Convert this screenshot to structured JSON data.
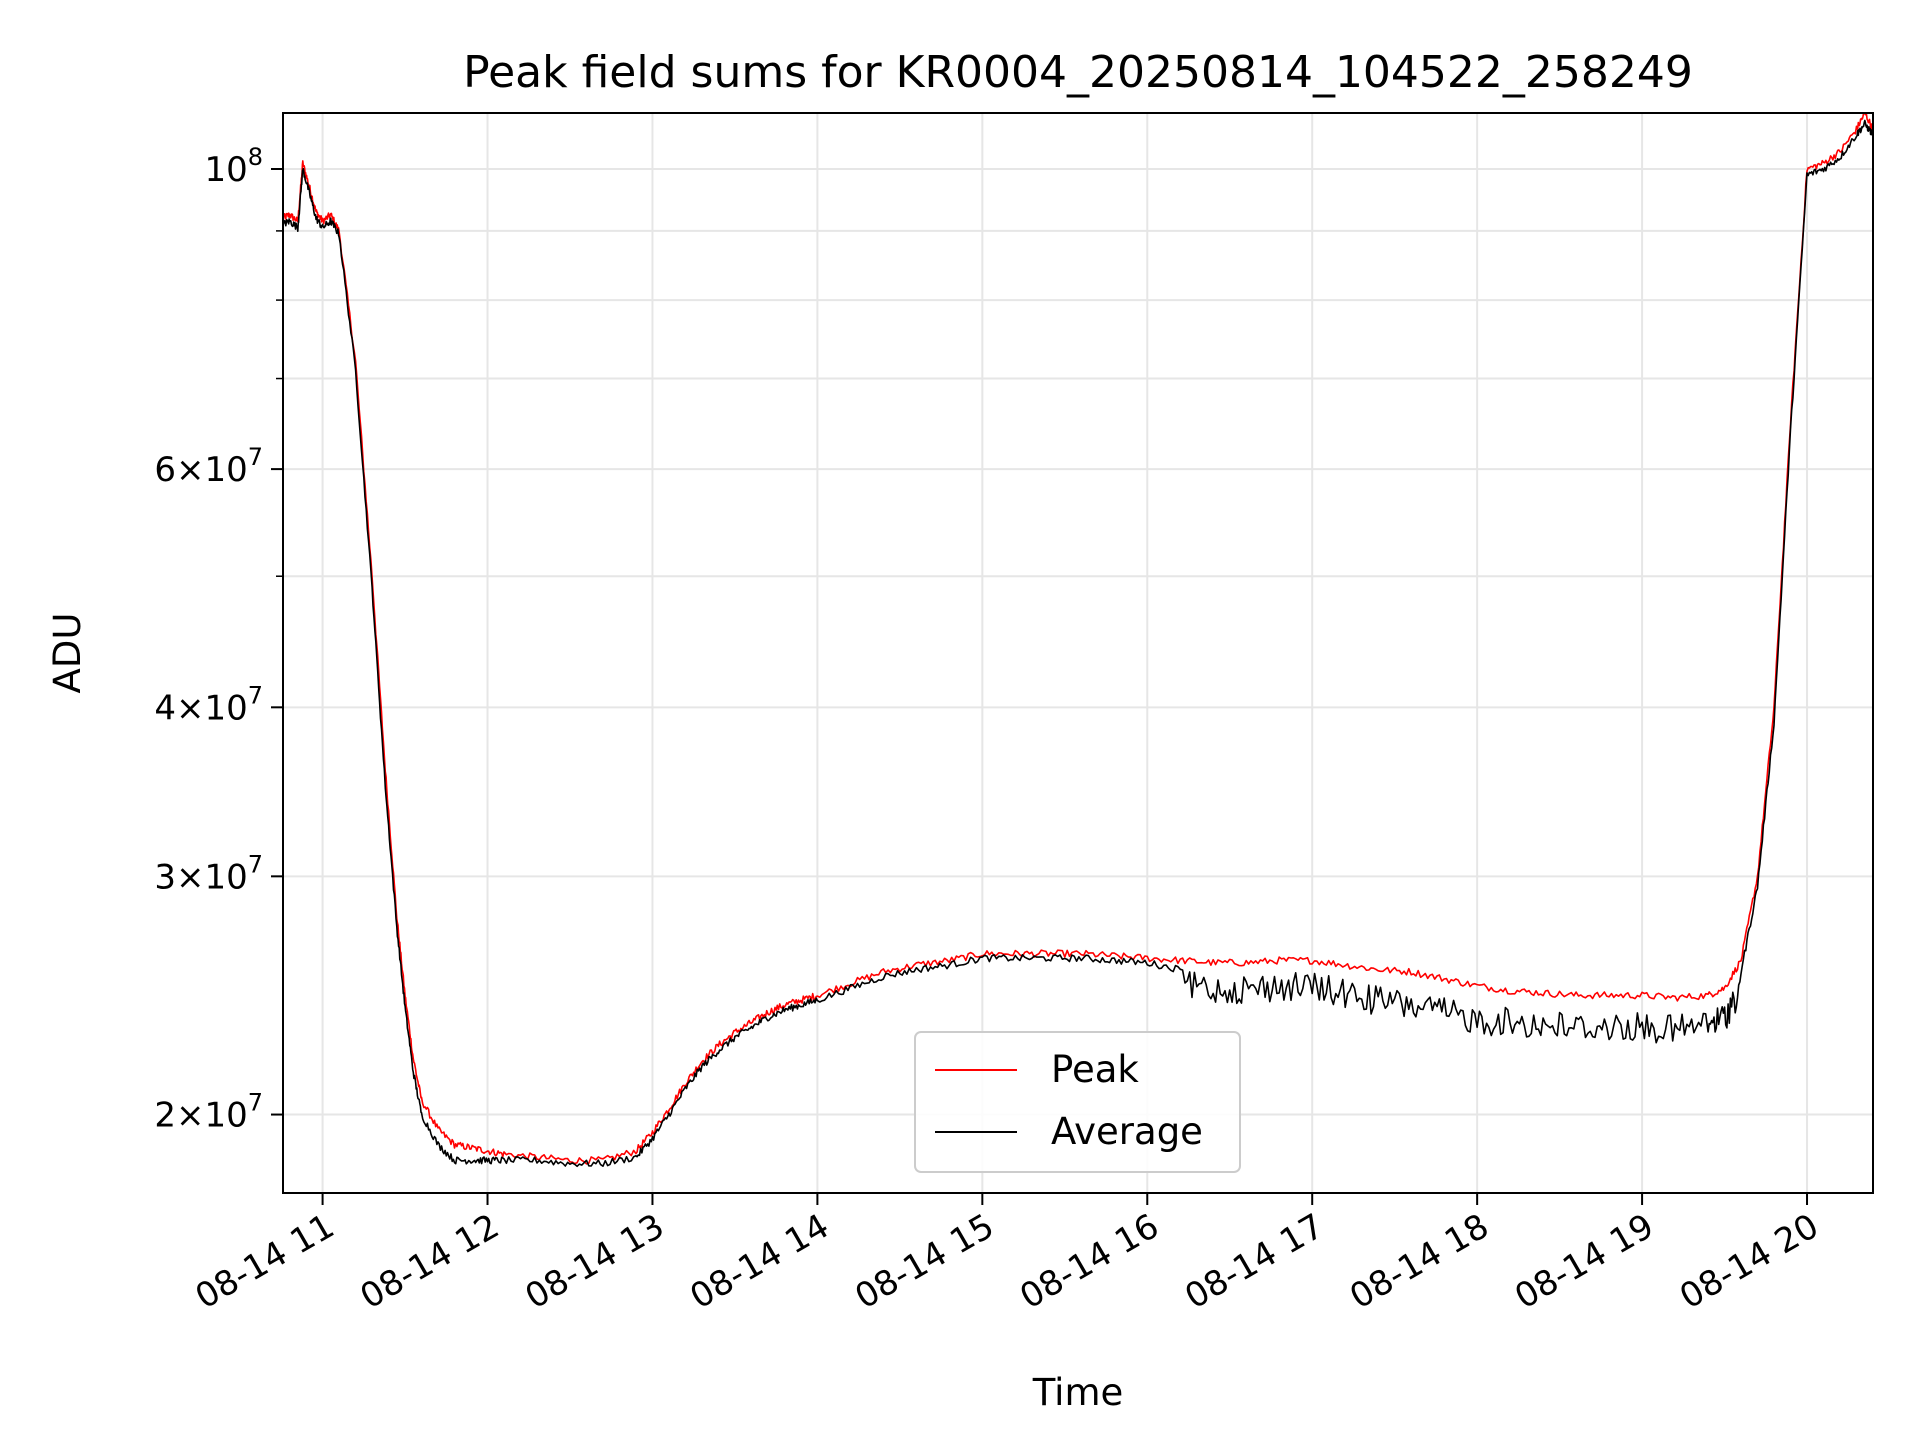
{
  "chart_data": {
    "type": "line",
    "title": "Peak field sums for KR0004_20250814_104522_258249",
    "xlabel": "Time",
    "ylabel": "ADU",
    "x_axis": {
      "scale": "time",
      "range_hours": [
        10.76,
        20.4
      ],
      "ticks": [
        {
          "value": 11,
          "label": "08-14 11"
        },
        {
          "value": 12,
          "label": "08-14 12"
        },
        {
          "value": 13,
          "label": "08-14 13"
        },
        {
          "value": 14,
          "label": "08-14 14"
        },
        {
          "value": 15,
          "label": "08-14 15"
        },
        {
          "value": 16,
          "label": "08-14 16"
        },
        {
          "value": 17,
          "label": "08-14 17"
        },
        {
          "value": 18,
          "label": "08-14 18"
        },
        {
          "value": 19,
          "label": "08-14 19"
        },
        {
          "value": 20,
          "label": "08-14 20"
        }
      ]
    },
    "y_axis": {
      "scale": "log",
      "range": [
        17500000,
        110000000
      ],
      "ticks": [
        {
          "value": 20000000,
          "mantissa": "2",
          "exp": "7"
        },
        {
          "value": 30000000,
          "mantissa": "3",
          "exp": "7"
        },
        {
          "value": 40000000,
          "mantissa": "4",
          "exp": "7"
        },
        {
          "value": 60000000,
          "mantissa": "6",
          "exp": "7"
        },
        {
          "value": 100000000,
          "mantissa": "",
          "exp": "8"
        }
      ],
      "minor_ticks": [
        50000000,
        70000000,
        80000000,
        90000000
      ]
    },
    "grid": true,
    "legend": {
      "position": "bottom-center"
    },
    "series": [
      {
        "name": "Peak",
        "color": "#ff0000",
        "points": [
          [
            10.76,
            92000000
          ],
          [
            10.8,
            92500000
          ],
          [
            10.85,
            91500000
          ],
          [
            10.88,
            101000000
          ],
          [
            10.92,
            97000000
          ],
          [
            10.96,
            93000000
          ],
          [
            11.0,
            91500000
          ],
          [
            11.05,
            92500000
          ],
          [
            11.1,
            90000000
          ],
          [
            11.2,
            72000000
          ],
          [
            11.3,
            50000000
          ],
          [
            11.38,
            36000000
          ],
          [
            11.45,
            28000000
          ],
          [
            11.5,
            24500000
          ],
          [
            11.55,
            22000000
          ],
          [
            11.6,
            20500000
          ],
          [
            11.7,
            19500000
          ],
          [
            11.8,
            19000000
          ],
          [
            11.9,
            18900000
          ],
          [
            12.0,
            18800000
          ],
          [
            12.1,
            18700000
          ],
          [
            12.3,
            18600000
          ],
          [
            12.5,
            18500000
          ],
          [
            12.7,
            18500000
          ],
          [
            12.9,
            18800000
          ],
          [
            13.0,
            19400000
          ],
          [
            13.1,
            20200000
          ],
          [
            13.2,
            21100000
          ],
          [
            13.3,
            21900000
          ],
          [
            13.4,
            22500000
          ],
          [
            13.5,
            23000000
          ],
          [
            13.6,
            23400000
          ],
          [
            13.7,
            23800000
          ],
          [
            13.8,
            24100000
          ],
          [
            13.9,
            24300000
          ],
          [
            14.0,
            24500000
          ],
          [
            14.2,
            25000000
          ],
          [
            14.4,
            25500000
          ],
          [
            14.6,
            25800000
          ],
          [
            14.8,
            26000000
          ],
          [
            15.0,
            26300000
          ],
          [
            15.2,
            26300000
          ],
          [
            15.4,
            26300000
          ],
          [
            15.6,
            26300000
          ],
          [
            15.8,
            26200000
          ],
          [
            16.0,
            26100000
          ],
          [
            16.2,
            26000000
          ],
          [
            16.4,
            25900000
          ],
          [
            16.6,
            25900000
          ],
          [
            16.8,
            26000000
          ],
          [
            17.0,
            26000000
          ],
          [
            17.2,
            25800000
          ],
          [
            17.4,
            25600000
          ],
          [
            17.6,
            25500000
          ],
          [
            17.8,
            25200000
          ],
          [
            18.0,
            24900000
          ],
          [
            18.2,
            24700000
          ],
          [
            18.4,
            24600000
          ],
          [
            18.6,
            24500000
          ],
          [
            18.8,
            24500000
          ],
          [
            19.0,
            24500000
          ],
          [
            19.2,
            24400000
          ],
          [
            19.4,
            24500000
          ],
          [
            19.5,
            24800000
          ],
          [
            19.6,
            26000000
          ],
          [
            19.7,
            30000000
          ],
          [
            19.8,
            40000000
          ],
          [
            19.9,
            65000000
          ],
          [
            20.0,
            100000000
          ],
          [
            20.1,
            101000000
          ],
          [
            20.2,
            103000000
          ],
          [
            20.3,
            107000000
          ],
          [
            20.35,
            110000000
          ],
          [
            20.4,
            107000000
          ]
        ]
      },
      {
        "name": "Average",
        "color": "#000000",
        "points": [
          [
            10.76,
            91000000
          ],
          [
            10.8,
            91500000
          ],
          [
            10.85,
            90500000
          ],
          [
            10.88,
            100000000
          ],
          [
            10.92,
            96000000
          ],
          [
            10.96,
            92000000
          ],
          [
            11.0,
            90500000
          ],
          [
            11.05,
            91500000
          ],
          [
            11.1,
            89500000
          ],
          [
            11.2,
            71000000
          ],
          [
            11.3,
            49000000
          ],
          [
            11.38,
            35000000
          ],
          [
            11.45,
            27500000
          ],
          [
            11.5,
            24000000
          ],
          [
            11.55,
            21500000
          ],
          [
            11.6,
            20000000
          ],
          [
            11.7,
            19000000
          ],
          [
            11.8,
            18500000
          ],
          [
            11.9,
            18500000
          ],
          [
            12.0,
            18500000
          ],
          [
            12.1,
            18500000
          ],
          [
            12.3,
            18500000
          ],
          [
            12.5,
            18400000
          ],
          [
            12.7,
            18400000
          ],
          [
            12.9,
            18600000
          ],
          [
            13.0,
            19200000
          ],
          [
            13.1,
            20000000
          ],
          [
            13.2,
            20900000
          ],
          [
            13.3,
            21700000
          ],
          [
            13.4,
            22300000
          ],
          [
            13.5,
            22800000
          ],
          [
            13.6,
            23200000
          ],
          [
            13.7,
            23600000
          ],
          [
            13.8,
            23900000
          ],
          [
            13.9,
            24100000
          ],
          [
            14.0,
            24300000
          ],
          [
            14.2,
            24800000
          ],
          [
            14.4,
            25300000
          ],
          [
            14.6,
            25600000
          ],
          [
            14.8,
            25800000
          ],
          [
            15.0,
            26100000
          ],
          [
            15.2,
            26100000
          ],
          [
            15.4,
            26100000
          ],
          [
            15.6,
            26100000
          ],
          [
            15.8,
            26000000
          ],
          [
            16.0,
            25900000
          ],
          [
            16.2,
            25600000
          ],
          [
            16.4,
            25400000
          ],
          [
            16.6,
            25400000
          ],
          [
            16.8,
            25500000
          ],
          [
            17.0,
            25500000
          ],
          [
            17.2,
            25200000
          ],
          [
            17.4,
            24900000
          ],
          [
            17.6,
            24700000
          ],
          [
            17.8,
            24400000
          ],
          [
            18.0,
            24100000
          ],
          [
            18.2,
            24000000
          ],
          [
            18.4,
            23900000
          ],
          [
            18.6,
            23800000
          ],
          [
            18.8,
            23800000
          ],
          [
            19.0,
            23800000
          ],
          [
            19.2,
            23700000
          ],
          [
            19.4,
            23900000
          ],
          [
            19.5,
            24200000
          ],
          [
            19.6,
            25500000
          ],
          [
            19.7,
            29500000
          ],
          [
            19.8,
            39000000
          ],
          [
            19.9,
            64000000
          ],
          [
            20.0,
            99000000
          ],
          [
            20.1,
            100000000
          ],
          [
            20.2,
            102000000
          ],
          [
            20.3,
            106000000
          ],
          [
            20.35,
            108000000
          ],
          [
            20.4,
            106000000
          ]
        ]
      }
    ]
  }
}
